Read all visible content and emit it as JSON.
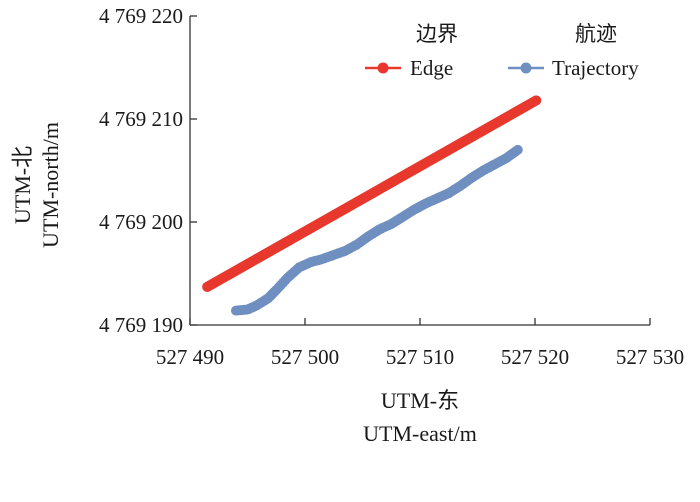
{
  "chart_data": {
    "type": "scatter",
    "xlabel": [
      "UTM-东",
      "UTM-east/m"
    ],
    "ylabel": [
      "UTM-北",
      "UTM-north/m"
    ],
    "xlim": [
      527490,
      527530
    ],
    "ylim": [
      4769190,
      4769220
    ],
    "xticks": [
      527490,
      527500,
      527510,
      527520,
      527530
    ],
    "yticks": [
      4769190,
      4769200,
      4769210,
      4769220
    ],
    "xtick_labels": [
      "527 490",
      "527 500",
      "527 510",
      "527 520",
      "527 530"
    ],
    "ytick_labels": [
      "4 769 190",
      "4 769 200",
      "4 769 210",
      "4 769 220"
    ],
    "grid": false,
    "legend_position": "top-right",
    "series": [
      {
        "name": "Edge",
        "name_cn": "边界",
        "color": "#e8382e",
        "x": [
          527491.5,
          527520.1
        ],
        "y": [
          4769193.7,
          4769211.8
        ],
        "render": "dense-line"
      },
      {
        "name": "Trajectory",
        "name_cn": "航迹",
        "color": "#6e8fbf",
        "x": [
          527494.0,
          527495.0,
          527495.8,
          527496.8,
          527497.5,
          527498.5,
          527499.5,
          527500.5,
          527501.5,
          527502.5,
          527503.5,
          527504.5,
          527505.5,
          527506.5,
          527507.5,
          527508.5,
          527509.5,
          527510.5,
          527511.5,
          527512.5,
          527513.5,
          527514.5,
          527515.5,
          527516.5,
          527517.5,
          527518.5
        ],
        "y": [
          4769191.4,
          4769191.5,
          4769191.9,
          4769192.6,
          4769193.4,
          4769194.6,
          4769195.6,
          4769196.1,
          4769196.4,
          4769196.8,
          4769197.2,
          4769197.8,
          4769198.6,
          4769199.3,
          4769199.8,
          4769200.5,
          4769201.2,
          4769201.8,
          4769202.3,
          4769202.8,
          4769203.5,
          4769204.3,
          4769205.0,
          4769205.6,
          4769206.2,
          4769207.0
        ],
        "render": "dense-points"
      }
    ]
  }
}
